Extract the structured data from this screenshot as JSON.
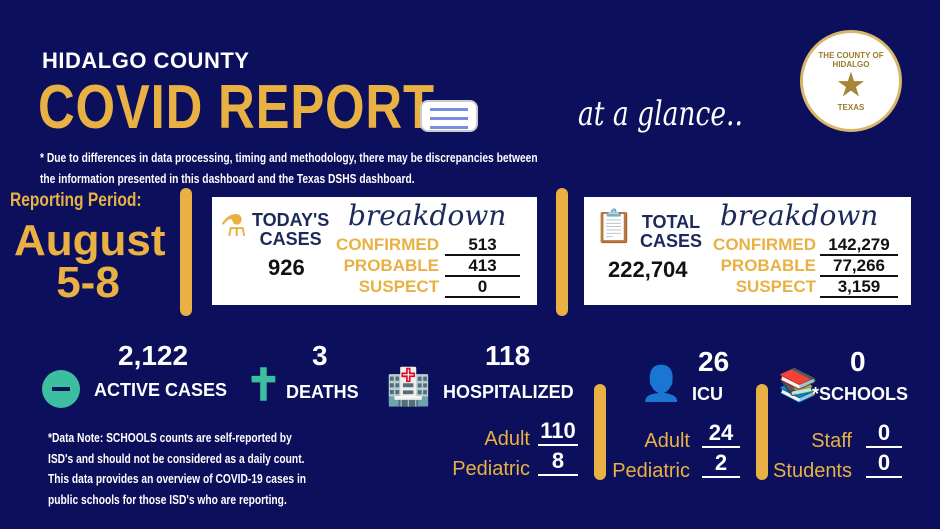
{
  "header": {
    "county": "HIDALGO COUNTY",
    "title": "COVID REPORT",
    "tagline": "at a glance..",
    "seal_text": "THE COUNTY OF HIDALGO",
    "seal_state": "TEXAS"
  },
  "disclaimer": [
    "* Due to differences in data processing, timing and methodology, there may be discrepancies between",
    "the information presented in this dashboard and the Texas DSHS dashboard."
  ],
  "reporting": {
    "label": "Reporting Period:",
    "month": "August",
    "days": "5-8"
  },
  "today": {
    "title1": "TODAY'S",
    "title2": "CASES",
    "script": "breakdown",
    "total": "926",
    "rows": [
      {
        "label": "CONFIRMED",
        "value": "513"
      },
      {
        "label": "PROBABLE",
        "value": "413"
      },
      {
        "label": "SUSPECT",
        "value": "0"
      }
    ]
  },
  "total": {
    "title1": "TOTAL",
    "title2": "CASES",
    "script": "breakdown",
    "total": "222,704",
    "rows": [
      {
        "label": "CONFIRMED",
        "value": "142,279"
      },
      {
        "label": "PROBABLE",
        "value": "77,266"
      },
      {
        "label": "SUSPECT",
        "value": "3,159"
      }
    ]
  },
  "stats": {
    "active": {
      "value": "2,122",
      "label": "ACTIVE CASES"
    },
    "deaths": {
      "value": "3",
      "label": "DEATHS"
    },
    "hosp": {
      "value": "118",
      "label": "HOSPITALIZED",
      "adult_label": "Adult",
      "adult": "110",
      "ped_label": "Pediatric",
      "ped": "8"
    },
    "icu": {
      "value": "26",
      "label": "ICU",
      "adult_label": "Adult",
      "adult": "24",
      "ped_label": "Pediatric",
      "ped": "2"
    },
    "schools": {
      "value": "0",
      "label": "*SCHOOLS",
      "staff_label": "Staff",
      "staff": "0",
      "students_label": "Students",
      "students": "0"
    }
  },
  "note": [
    "*Data Note: SCHOOLS counts are self-reported by",
    "ISD's and should not be considered as a daily count.",
    "This data provides an overview of COVID-19 cases in",
    "public schools for those ISD's who are reporting."
  ],
  "colors": {
    "background": "#0c0f5c",
    "gold": "#e9b143",
    "teal": "#3dbf9f"
  }
}
